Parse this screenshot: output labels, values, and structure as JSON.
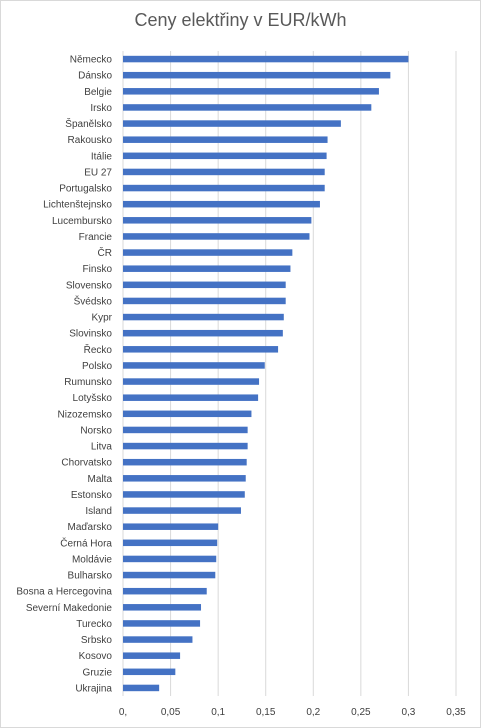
{
  "chart_data": {
    "type": "bar",
    "orientation": "horizontal",
    "title": "Ceny elektřiny v EUR/kWh",
    "categories": [
      "Německo",
      "Dánsko",
      "Belgie",
      "Irsko",
      "Španělsko",
      "Rakousko",
      "Itálie",
      "EU 27",
      "Portugalsko",
      "Lichtenštejnsko",
      "Lucembursko",
      "Francie",
      "ČR",
      "Finsko",
      "Slovensko",
      "Švédsko",
      "Kypr",
      "Slovinsko",
      "Řecko",
      "Polsko",
      "Rumunsko",
      "Lotyšsko",
      "Nizozemsko",
      "Norsko",
      "Litva",
      "Chorvatsko",
      "Malta",
      "Estonsko",
      "Island",
      "Maďarsko",
      "Černá Hora",
      "Moldávie",
      "Bulharsko",
      "Bosna a Hercegovina",
      "Severní Makedonie",
      "Turecko",
      "Srbsko",
      "Kosovo",
      "Gruzie",
      "Ukrajina"
    ],
    "values": [
      0.3,
      0.281,
      0.269,
      0.261,
      0.229,
      0.215,
      0.214,
      0.212,
      0.212,
      0.207,
      0.198,
      0.196,
      0.178,
      0.176,
      0.171,
      0.171,
      0.169,
      0.168,
      0.163,
      0.149,
      0.143,
      0.142,
      0.135,
      0.131,
      0.131,
      0.13,
      0.129,
      0.128,
      0.124,
      0.1,
      0.099,
      0.098,
      0.097,
      0.088,
      0.082,
      0.081,
      0.073,
      0.06,
      0.055,
      0.038
    ],
    "xlim": [
      0,
      0.35
    ],
    "xticks": [
      "0,",
      "0,05",
      "0,1",
      "0,15",
      "0,2",
      "0,25",
      "0,3",
      "0,35"
    ],
    "grid": true,
    "bar_color": "#4472c4",
    "grid_color": "#d9d9d9"
  }
}
